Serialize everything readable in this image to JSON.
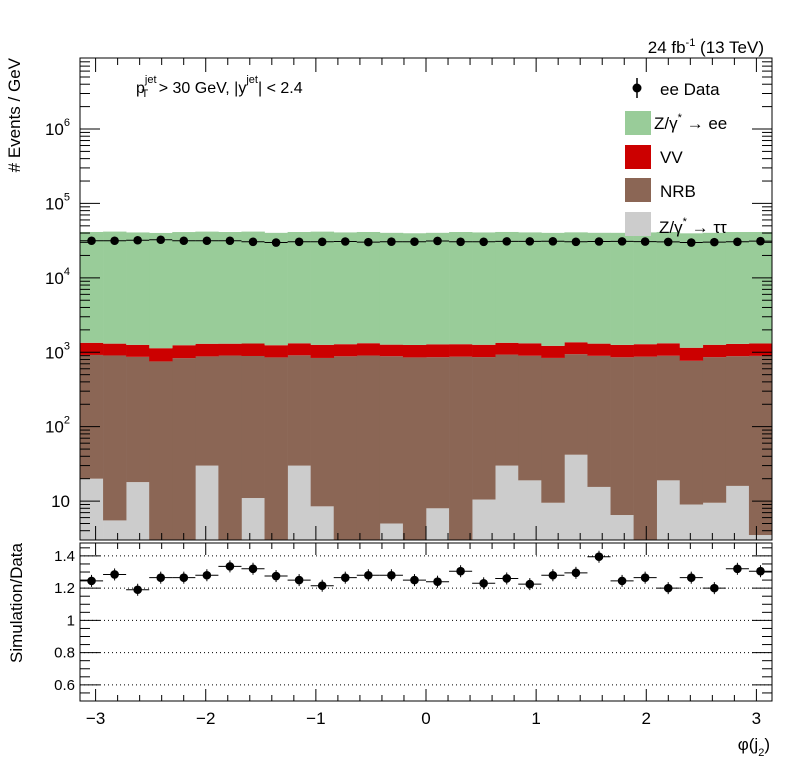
{
  "header": {
    "lumi_label": "24 fb",
    "lumi_sup": "-1",
    "energy_label": " (13 TeV)"
  },
  "cut_label": {
    "p": "p",
    "p_sup": "jet",
    "p_sub": "T",
    "p_rest": " > 30 GeV,  |y",
    "y_sup": "jet",
    "y_rest": "| < 2.4"
  },
  "legend": {
    "data": "ee Data",
    "zee": "Z/γ",
    "zee_sup": "*",
    "zee_rest": " → ee",
    "vv": "VV",
    "nrb": "NRB",
    "ztt": "Z/γ",
    "ztt_sup": "*",
    "ztt_rest": " → ττ"
  },
  "colors": {
    "zee": "#99cc99",
    "vv": "#cc0000",
    "nrb": "#8b6655",
    "ztt": "#cccccc"
  },
  "chart_data": [
    {
      "type": "bar",
      "stacked": true,
      "log_y": true,
      "ylabel": "# Events / GeV",
      "ylim": [
        3,
        9000000
      ],
      "xlim": [
        -3.1416,
        3.1416
      ],
      "nbins": 30,
      "x_ticks": [
        -3,
        -2,
        -1,
        0,
        1,
        2,
        3
      ],
      "x_tick_labels": [
        "−3",
        "−2",
        "−1",
        "0",
        "1",
        "2",
        "3"
      ],
      "y_ticks": [
        {
          "value": 10,
          "label": "10",
          "sup": ""
        },
        {
          "value": 100,
          "label": "10",
          "sup": "2"
        },
        {
          "value": 1000,
          "label": "10",
          "sup": "3"
        },
        {
          "value": 10000,
          "label": "10",
          "sup": "4"
        },
        {
          "value": 100000,
          "label": "10",
          "sup": "5"
        },
        {
          "value": 1000000,
          "label": "10",
          "sup": "6"
        }
      ],
      "series": [
        {
          "name": "Z/γ* → ττ",
          "key": "ztt",
          "values": [
            20,
            5.5,
            18,
            3,
            3,
            30,
            3,
            11,
            3,
            30,
            8.5,
            3,
            3,
            5,
            3,
            8,
            3,
            10.5,
            30,
            19,
            9.5,
            42,
            15.5,
            6.5,
            3,
            19,
            9,
            9.5,
            16,
            3.5
          ]
        },
        {
          "name": "NRB",
          "key": "nrb",
          "values": [
            900,
            900,
            850,
            750,
            830,
            850,
            900,
            880,
            850,
            880,
            830,
            880,
            900,
            880,
            850,
            850,
            870,
            850,
            900,
            880,
            830,
            900,
            880,
            850,
            870,
            880,
            760,
            850,
            870,
            890
          ]
        },
        {
          "name": "VV",
          "key": "vv",
          "values": [
            420,
            400,
            390,
            380,
            410,
            420,
            400,
            420,
            390,
            410,
            420,
            400,
            420,
            380,
            400,
            420,
            410,
            400,
            410,
            420,
            380,
            420,
            410,
            400,
            410,
            420,
            380,
            400,
            410,
            420
          ]
        },
        {
          "name": "Z/γ* → ee",
          "key": "zee",
          "values": [
            40000,
            40500,
            39500,
            39000,
            40000,
            40500,
            40000,
            40500,
            39000,
            40000,
            40500,
            39500,
            40000,
            39000,
            38500,
            39000,
            40000,
            39500,
            40000,
            39500,
            39000,
            39500,
            39000,
            39000,
            39500,
            40000,
            38500,
            39000,
            40000,
            40000
          ]
        },
        {
          "name": "ee Data",
          "key": "data",
          "values": [
            31500,
            31500,
            32000,
            32500,
            31500,
            31500,
            31500,
            30500,
            29800,
            30500,
            30500,
            30800,
            30200,
            30600,
            30600,
            31300,
            30500,
            30500,
            30900,
            30900,
            31000,
            30500,
            30800,
            30900,
            30700,
            30400,
            29800,
            30200,
            30500,
            31100
          ]
        }
      ]
    },
    {
      "type": "scatter",
      "ylabel": "Simulation/Data",
      "xlabel": "φ(j",
      "xlabel_sub": "2",
      "xlabel_end": ")",
      "ylim": [
        0.5,
        1.48
      ],
      "xlim": [
        -3.1416,
        3.1416
      ],
      "y_ticks": [
        0.6,
        0.8,
        1,
        1.2,
        1.4
      ],
      "y_tick_labels": [
        "0.6",
        "0.8",
        "1",
        "1.2",
        "1.4"
      ],
      "values": [
        1.245,
        1.285,
        1.19,
        1.265,
        1.265,
        1.28,
        1.335,
        1.32,
        1.275,
        1.25,
        1.215,
        1.265,
        1.28,
        1.28,
        1.25,
        1.24,
        1.305,
        1.23,
        1.26,
        1.225,
        1.28,
        1.295,
        1.395,
        1.245,
        1.265,
        1.2,
        1.265,
        1.2,
        1.32,
        1.305
      ]
    }
  ]
}
